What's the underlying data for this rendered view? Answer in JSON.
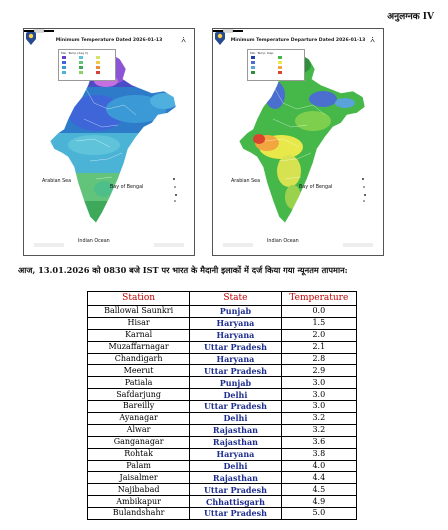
{
  "annex_label": "अनुलग्नक IV",
  "maps": [
    {
      "title": "Minimum Temperature Dated 2026-01-13",
      "arabian_sea": "Arabian Sea",
      "bay_of_bengal": "Bay of Bengal",
      "indian_ocean": "Indian Ocean",
      "legend_title": "Min. Temp (deg C)"
    },
    {
      "title": "Minimum Temperature Departure Dated 2026-01-13",
      "arabian_sea": "Arabian Sea",
      "bay_of_bengal": "Bay of Bengal",
      "indian_ocean": "Indian Ocean",
      "legend_title": "Min. Temp. Dep."
    }
  ],
  "heading": "आज, 13.01.2026 को 0830 बजे IST पर भारत के मैदानी इलाकों में दर्ज किया गया न्यूनतम तापमान:",
  "table": {
    "headers": {
      "station": "Station",
      "state": "State",
      "temperature": "Temperature"
    },
    "rows": [
      {
        "station": "Ballowal Saunkri",
        "state": "Punjab",
        "temperature": "0.0"
      },
      {
        "station": "Hisar",
        "state": "Haryana",
        "temperature": "1.5"
      },
      {
        "station": "Karnal",
        "state": "Haryana",
        "temperature": "2.0"
      },
      {
        "station": "Muzaffarnagar",
        "state": "Uttar Pradesh",
        "temperature": "2.1"
      },
      {
        "station": "Chandigarh",
        "state": "Haryana",
        "temperature": "2.8"
      },
      {
        "station": "Meerut",
        "state": "Uttar Pradesh",
        "temperature": "2.9"
      },
      {
        "station": "Patiala",
        "state": "Punjab",
        "temperature": "3.0"
      },
      {
        "station": "Safdarjung",
        "state": "Delhi",
        "temperature": "3.0"
      },
      {
        "station": "Bareilly",
        "state": "Uttar Pradesh",
        "temperature": "3.0"
      },
      {
        "station": "Ayanagar",
        "state": "Delhi",
        "temperature": "3.2"
      },
      {
        "station": "Alwar",
        "state": "Rajasthan",
        "temperature": "3.2"
      },
      {
        "station": "Ganganagar",
        "state": "Rajasthan",
        "temperature": "3.6"
      },
      {
        "station": "Rohtak",
        "state": "Haryana",
        "temperature": "3.8"
      },
      {
        "station": "Palam",
        "state": "Delhi",
        "temperature": "4.0"
      },
      {
        "station": "Jaisalmer",
        "state": "Rajasthan",
        "temperature": "4.4"
      },
      {
        "station": "Najibabad",
        "state": "Uttar Pradesh",
        "temperature": "4.5"
      },
      {
        "station": "Ambikapur",
        "state": "Chhattisgarh",
        "temperature": "4.9"
      },
      {
        "station": "Bulandshahr",
        "state": "Uttar Pradesh",
        "temperature": "5.0"
      }
    ]
  }
}
